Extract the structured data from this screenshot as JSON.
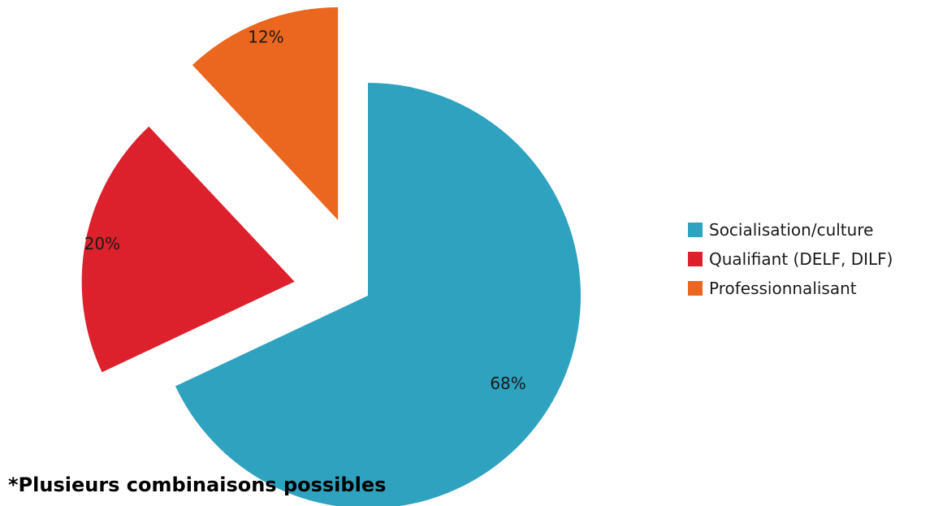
{
  "chart_data": {
    "type": "pie",
    "categories": [
      "Socialisation/culture",
      "Qualifiant (DELF, DILF)",
      "Professionnalisant"
    ],
    "values": [
      68,
      20,
      12
    ],
    "value_labels": [
      "68%",
      "20%",
      "12%"
    ],
    "colors": [
      "#2ea2bf",
      "#dc212c",
      "#eb671f"
    ],
    "exploded": true,
    "legend_position": "right"
  },
  "footnote": "*Plusieurs combinaisons possibles"
}
